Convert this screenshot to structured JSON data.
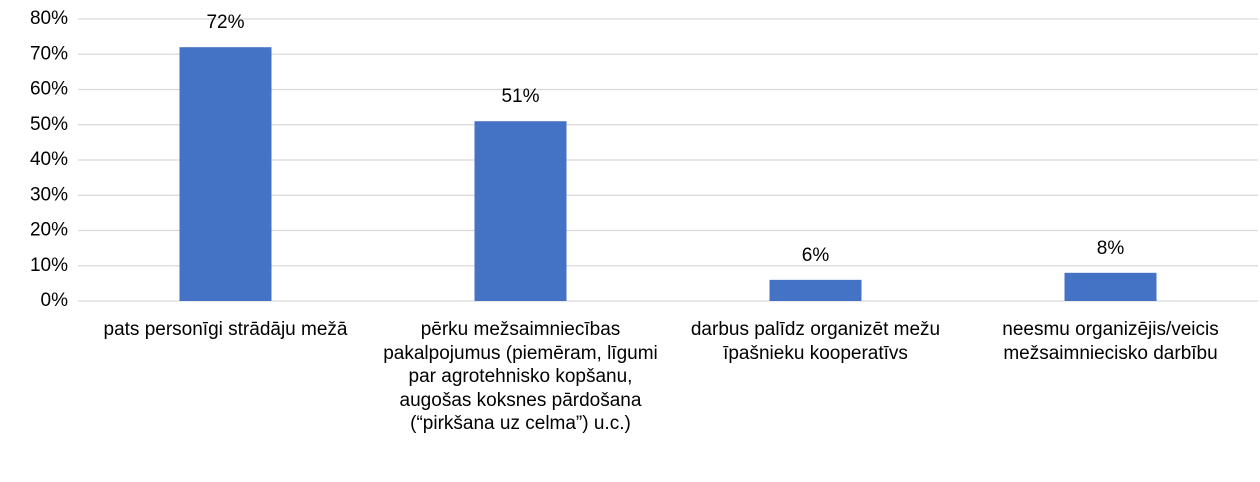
{
  "chart_data": {
    "type": "bar",
    "categories": [
      "pats personīgi strādāju mežā",
      "pērku mežsaimniecības pakalpojumus (piemēram, līgumi par agrotehnisko kopšanu, augošas koksnes pārdošana (“pirkšana uz celma”) u.c.)",
      "darbus palīdz organizēt mežu īpašnieku kooperatīvs",
      "neesmu organizējis/veicis mežsaimniecisko darbību"
    ],
    "values": [
      72,
      51,
      6,
      8
    ],
    "value_labels": [
      "72%",
      "51%",
      "6%",
      "8%"
    ],
    "color": "#4472c4",
    "ylim": [
      0,
      80
    ],
    "yticks": [
      {
        "value": 0,
        "label": "0%"
      },
      {
        "value": 10,
        "label": "10%"
      },
      {
        "value": 20,
        "label": "20%"
      },
      {
        "value": 30,
        "label": "30%"
      },
      {
        "value": 40,
        "label": "40%"
      },
      {
        "value": 50,
        "label": "50%"
      },
      {
        "value": 60,
        "label": "60%"
      },
      {
        "value": 70,
        "label": "70%"
      },
      {
        "value": 80,
        "label": "80%"
      }
    ],
    "grid": true
  }
}
